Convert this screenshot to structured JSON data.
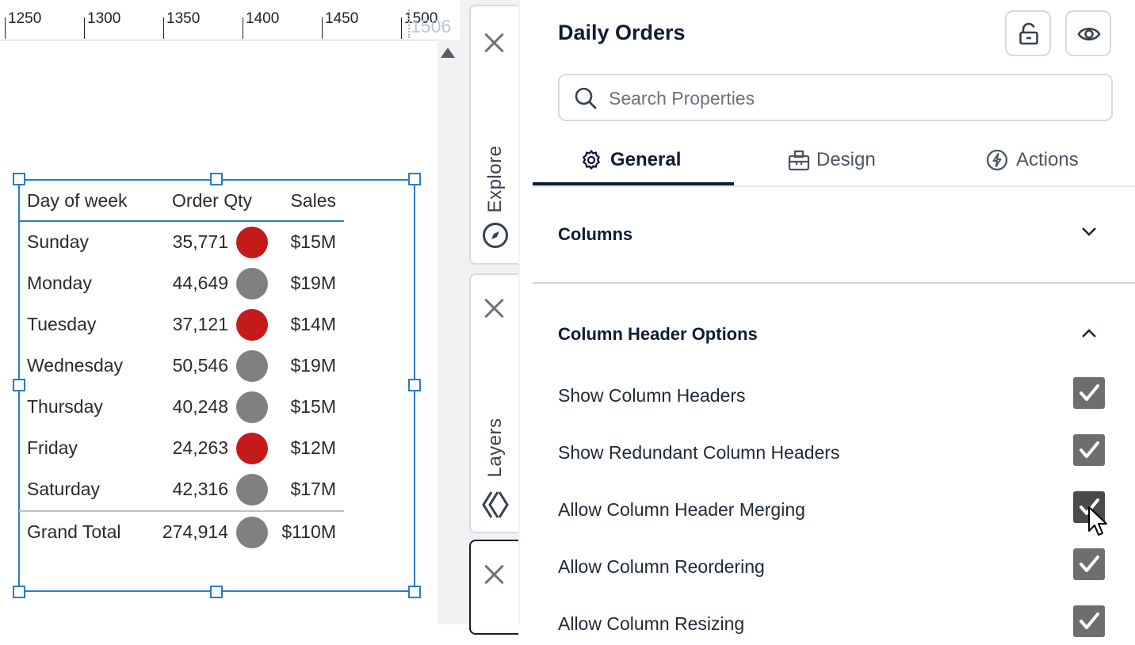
{
  "ruler": {
    "ticks": [
      "1250",
      "1300",
      "1350",
      "1400",
      "1450",
      "1500"
    ],
    "readout": "1506"
  },
  "table": {
    "headers": {
      "day": "Day of week",
      "qty": "Order Qty",
      "sales": "Sales"
    },
    "rows": [
      {
        "day": "Sunday",
        "qty": "35,771",
        "sales": "$15M",
        "status": "red"
      },
      {
        "day": "Monday",
        "qty": "44,649",
        "sales": "$19M",
        "status": "gray"
      },
      {
        "day": "Tuesday",
        "qty": "37,121",
        "sales": "$14M",
        "status": "red"
      },
      {
        "day": "Wednesday",
        "qty": "50,546",
        "sales": "$19M",
        "status": "gray"
      },
      {
        "day": "Thursday",
        "qty": "40,248",
        "sales": "$15M",
        "status": "gray"
      },
      {
        "day": "Friday",
        "qty": "24,263",
        "sales": "$12M",
        "status": "red"
      },
      {
        "day": "Saturday",
        "qty": "42,316",
        "sales": "$17M",
        "status": "gray"
      }
    ],
    "total": {
      "day": "Grand Total",
      "qty": "274,914",
      "sales": "$110M",
      "status": "gray"
    },
    "colors": {
      "red": "#c41a1a",
      "gray": "#808080"
    }
  },
  "side_tabs": {
    "explore": "Explore",
    "layers": "Layers"
  },
  "panel": {
    "title": "Daily Orders",
    "search_placeholder": "Search Properties",
    "tabs": {
      "general": "General",
      "design": "Design",
      "actions": "Actions"
    },
    "sections": {
      "columns": "Columns",
      "header_options": "Column Header Options"
    },
    "options": [
      {
        "label": "Show Column Headers",
        "checked": true
      },
      {
        "label": "Show Redundant Column Headers",
        "checked": true
      },
      {
        "label": "Allow Column Header Merging",
        "checked": true
      },
      {
        "label": "Allow Column Reordering",
        "checked": true
      },
      {
        "label": "Allow Column Resizing",
        "checked": true
      }
    ]
  },
  "icons": {
    "unlock": "unlock-icon",
    "preview": "eye-icon",
    "search": "search-icon",
    "general": "gear-icon",
    "design": "design-icon",
    "actions": "lightning-icon",
    "explore": "compass-icon",
    "layers": "layers-icon"
  }
}
